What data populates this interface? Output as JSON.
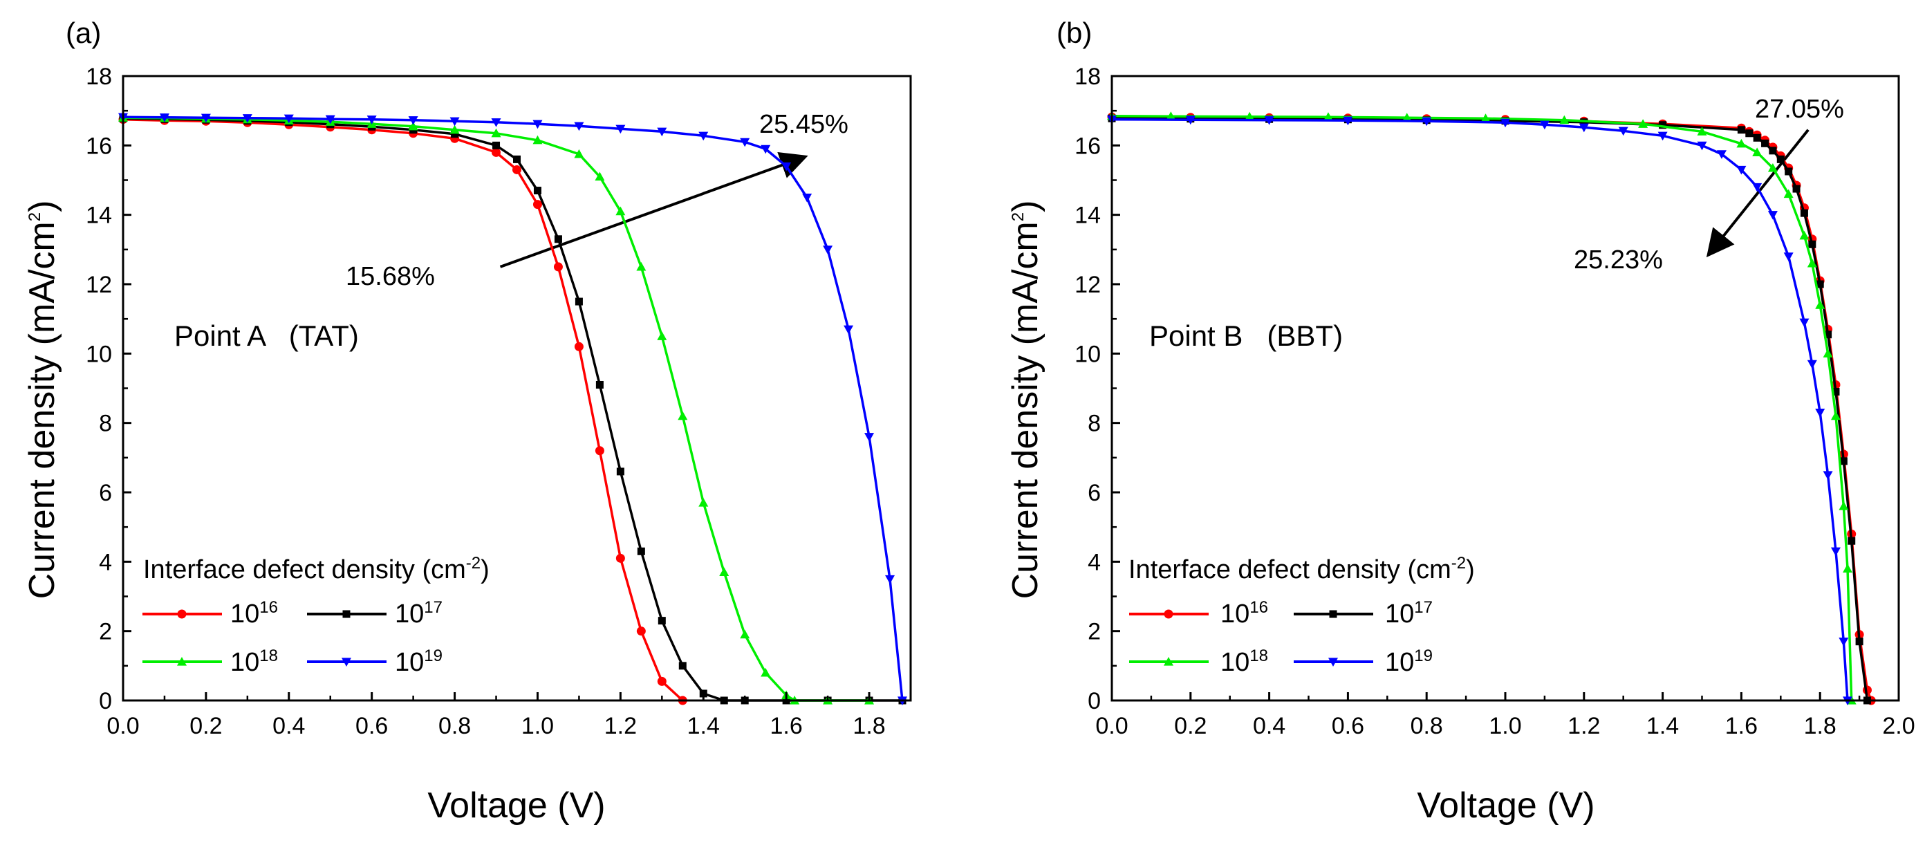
{
  "chart_data": [
    {
      "type": "line",
      "panel_label": "(a)",
      "xlabel": "Voltage (V)",
      "ylabel_base": "Current density (mA/cm",
      "ylabel_sup": "2",
      "ylabel_close": ")",
      "xlim": [
        0,
        1.9
      ],
      "ylim": [
        0,
        18
      ],
      "xticks": [
        "0.0",
        "0.2",
        "0.4",
        "0.6",
        "0.8",
        "1.0",
        "1.2",
        "1.4",
        "1.6",
        "1.8"
      ],
      "yticks": [
        "0",
        "2",
        "4",
        "6",
        "8",
        "10",
        "12",
        "14",
        "16",
        "18"
      ],
      "annotation": "Point A   (TAT)",
      "arrow_label_start": "15.68%",
      "arrow_label_end": "25.45%",
      "arrow": {
        "from": [
          0.91,
          12.5
        ],
        "to": [
          1.64,
          15.65
        ]
      },
      "legend": {
        "title_base": "Interface defect density (cm",
        "title_sup": "-2",
        "title_close": ")",
        "entries": [
          {
            "base": "10",
            "sup": "16"
          },
          {
            "base": "10",
            "sup": "17"
          },
          {
            "base": "10",
            "sup": "18"
          },
          {
            "base": "10",
            "sup": "19"
          }
        ]
      },
      "series": [
        {
          "name": "10^16",
          "color": "#ff0000",
          "marker": "circle",
          "x": [
            0,
            0.1,
            0.2,
            0.3,
            0.4,
            0.5,
            0.6,
            0.7,
            0.8,
            0.9,
            0.95,
            1.0,
            1.05,
            1.1,
            1.15,
            1.2,
            1.25,
            1.3,
            1.35
          ],
          "y": [
            16.75,
            16.72,
            16.7,
            16.66,
            16.6,
            16.53,
            16.45,
            16.35,
            16.2,
            15.8,
            15.3,
            14.3,
            12.5,
            10.2,
            7.2,
            4.1,
            2.0,
            0.55,
            0
          ]
        },
        {
          "name": "10^17",
          "color": "#000000",
          "marker": "square",
          "x": [
            0,
            0.1,
            0.2,
            0.3,
            0.4,
            0.5,
            0.6,
            0.7,
            0.8,
            0.9,
            0.95,
            1.0,
            1.05,
            1.1,
            1.15,
            1.2,
            1.25,
            1.3,
            1.35,
            1.4,
            1.45,
            1.5,
            1.6,
            1.7,
            1.8,
            1.88
          ],
          "y": [
            16.78,
            16.76,
            16.74,
            16.71,
            16.67,
            16.61,
            16.54,
            16.45,
            16.33,
            16.0,
            15.6,
            14.7,
            13.3,
            11.5,
            9.1,
            6.6,
            4.3,
            2.3,
            1.0,
            0.2,
            0.0,
            0,
            0,
            0,
            0,
            0
          ]
        },
        {
          "name": "10^18",
          "color": "#00ee00",
          "marker": "triangle-up",
          "x": [
            0,
            0.1,
            0.2,
            0.3,
            0.4,
            0.5,
            0.6,
            0.7,
            0.8,
            0.9,
            1.0,
            1.1,
            1.15,
            1.2,
            1.25,
            1.3,
            1.35,
            1.4,
            1.45,
            1.5,
            1.55,
            1.6,
            1.62,
            1.7,
            1.8
          ],
          "y": [
            16.8,
            16.79,
            16.77,
            16.75,
            16.72,
            16.68,
            16.62,
            16.55,
            16.45,
            16.35,
            16.15,
            15.75,
            15.1,
            14.1,
            12.5,
            10.5,
            8.2,
            5.7,
            3.7,
            1.9,
            0.8,
            0.15,
            0,
            0,
            0
          ]
        },
        {
          "name": "10^19",
          "color": "#0000ff",
          "marker": "triangle-down",
          "x": [
            0,
            0.1,
            0.2,
            0.3,
            0.4,
            0.5,
            0.6,
            0.7,
            0.8,
            0.9,
            1.0,
            1.1,
            1.2,
            1.3,
            1.4,
            1.5,
            1.55,
            1.6,
            1.65,
            1.7,
            1.75,
            1.8,
            1.85,
            1.88
          ],
          "y": [
            16.82,
            16.81,
            16.8,
            16.79,
            16.78,
            16.76,
            16.75,
            16.73,
            16.7,
            16.67,
            16.62,
            16.56,
            16.48,
            16.4,
            16.28,
            16.1,
            15.9,
            15.4,
            14.5,
            13.0,
            10.7,
            7.6,
            3.5,
            0
          ]
        }
      ]
    },
    {
      "type": "line",
      "panel_label": "(b)",
      "xlabel": "Voltage (V)",
      "ylabel_base": "Current density (mA/cm",
      "ylabel_sup": "2",
      "ylabel_close": ")",
      "xlim": [
        0,
        2.0
      ],
      "ylim": [
        0,
        18
      ],
      "xticks": [
        "0.0",
        "0.2",
        "0.4",
        "0.6",
        "0.8",
        "1.0",
        "1.2",
        "1.4",
        "1.6",
        "1.8",
        "2.0"
      ],
      "yticks": [
        "0",
        "2",
        "4",
        "6",
        "8",
        "10",
        "12",
        "14",
        "16",
        "18"
      ],
      "annotation": "Point B   (BBT)",
      "arrow_label_start": "27.05%",
      "arrow_label_end": "25.23%",
      "arrow": {
        "from": [
          1.77,
          16.45
        ],
        "to": [
          1.52,
          12.9
        ]
      },
      "legend": {
        "title_base": "Interface defect density (cm",
        "title_sup": "-2",
        "title_close": ")",
        "entries": [
          {
            "base": "10",
            "sup": "16"
          },
          {
            "base": "10",
            "sup": "17"
          },
          {
            "base": "10",
            "sup": "18"
          },
          {
            "base": "10",
            "sup": "19"
          }
        ]
      },
      "series": [
        {
          "name": "10^16",
          "color": "#ff0000",
          "marker": "circle",
          "x": [
            0,
            0.2,
            0.4,
            0.6,
            0.8,
            1.0,
            1.2,
            1.4,
            1.6,
            1.62,
            1.64,
            1.66,
            1.68,
            1.7,
            1.72,
            1.74,
            1.76,
            1.78,
            1.8,
            1.82,
            1.84,
            1.86,
            1.88,
            1.9,
            1.92,
            1.93
          ],
          "y": [
            16.82,
            16.81,
            16.8,
            16.79,
            16.77,
            16.75,
            16.7,
            16.62,
            16.5,
            16.4,
            16.3,
            16.15,
            15.95,
            15.7,
            15.35,
            14.85,
            14.2,
            13.3,
            12.1,
            10.7,
            9.1,
            7.1,
            4.8,
            1.9,
            0.3,
            0
          ]
        },
        {
          "name": "10^17",
          "color": "#000000",
          "marker": "square",
          "x": [
            0,
            0.2,
            0.4,
            0.6,
            0.8,
            1.0,
            1.2,
            1.4,
            1.6,
            1.62,
            1.64,
            1.66,
            1.68,
            1.7,
            1.72,
            1.74,
            1.76,
            1.78,
            1.8,
            1.82,
            1.84,
            1.86,
            1.88,
            1.9,
            1.92
          ],
          "y": [
            16.78,
            16.77,
            16.76,
            16.75,
            16.73,
            16.71,
            16.67,
            16.59,
            16.45,
            16.35,
            16.22,
            16.06,
            15.85,
            15.6,
            15.25,
            14.75,
            14.05,
            13.15,
            12.0,
            10.55,
            8.9,
            6.9,
            4.6,
            1.7,
            0
          ]
        },
        {
          "name": "10^18",
          "color": "#00ee00",
          "marker": "triangle-up",
          "x": [
            0,
            0.15,
            0.35,
            0.55,
            0.75,
            0.95,
            1.15,
            1.35,
            1.5,
            1.6,
            1.64,
            1.68,
            1.72,
            1.76,
            1.78,
            1.8,
            1.82,
            1.84,
            1.86,
            1.87,
            1.88
          ],
          "y": [
            16.85,
            16.84,
            16.83,
            16.82,
            16.8,
            16.78,
            16.73,
            16.62,
            16.4,
            16.05,
            15.8,
            15.35,
            14.6,
            13.4,
            12.6,
            11.4,
            10.0,
            8.2,
            5.6,
            3.8,
            0
          ]
        },
        {
          "name": "10^19",
          "color": "#0000ff",
          "marker": "triangle-down",
          "x": [
            0,
            0.2,
            0.4,
            0.6,
            0.8,
            1.0,
            1.1,
            1.2,
            1.3,
            1.4,
            1.5,
            1.55,
            1.6,
            1.64,
            1.68,
            1.72,
            1.76,
            1.78,
            1.8,
            1.82,
            1.84,
            1.86,
            1.87
          ],
          "y": [
            16.75,
            16.74,
            16.73,
            16.72,
            16.7,
            16.66,
            16.6,
            16.52,
            16.42,
            16.28,
            16.0,
            15.75,
            15.3,
            14.8,
            14.0,
            12.8,
            10.9,
            9.7,
            8.3,
            6.5,
            4.3,
            1.7,
            0
          ]
        }
      ]
    }
  ]
}
